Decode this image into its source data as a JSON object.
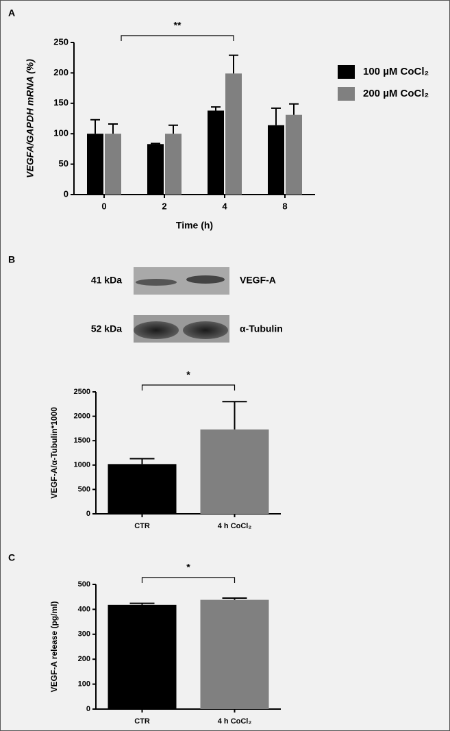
{
  "panel_labels": [
    "A",
    "B",
    "C"
  ],
  "blot": {
    "bands": [
      {
        "size": "41 kDa",
        "label": "VEGF-A"
      },
      {
        "size": "52 kDa",
        "label": "α-Tubulin"
      }
    ]
  },
  "chart_data": [
    {
      "type": "bar",
      "xlabel": "Time (h)",
      "ylabel": "VEGFA/GAPDH mRNA (%)",
      "categories": [
        "0",
        "2",
        "4",
        "8"
      ],
      "series": [
        {
          "name": "100 µM CoCl₂",
          "color": "#000000",
          "values": [
            100,
            83,
            138,
            114
          ],
          "errors": [
            23,
            1,
            6,
            28
          ]
        },
        {
          "name": "200 µM CoCl₂",
          "color": "#808080",
          "values": [
            100,
            100,
            199,
            131
          ],
          "errors": [
            16,
            14,
            30,
            18
          ]
        }
      ],
      "ylim": [
        0,
        250
      ],
      "yticks": [
        0,
        50,
        100,
        150,
        200,
        250
      ],
      "annotation": {
        "text": "**",
        "between": [
          "0",
          "4"
        ]
      },
      "legend": "right"
    },
    {
      "type": "bar",
      "ylabel": "VEGF-A/α-Tubulin*1000",
      "categories": [
        "CTR",
        "4 h CoCl₂"
      ],
      "values": [
        1020,
        1730
      ],
      "errors": [
        110,
        570
      ],
      "colors": [
        "#000000",
        "#808080"
      ],
      "ylim": [
        0,
        2500
      ],
      "yticks": [
        0,
        500,
        1000,
        1500,
        2000,
        2500
      ],
      "annotation": {
        "text": "*",
        "between": [
          "CTR",
          "4 h CoCl₂"
        ]
      }
    },
    {
      "type": "bar",
      "ylabel": "VEGF-A release (pg/ml)",
      "categories": [
        "CTR",
        "4 h CoCl₂"
      ],
      "values": [
        418,
        438
      ],
      "errors": [
        6,
        7
      ],
      "colors": [
        "#000000",
        "#808080"
      ],
      "ylim": [
        0,
        500
      ],
      "yticks": [
        0,
        100,
        200,
        300,
        400,
        500
      ],
      "annotation": {
        "text": "*",
        "between": [
          "CTR",
          "4 h CoCl₂"
        ]
      }
    }
  ]
}
